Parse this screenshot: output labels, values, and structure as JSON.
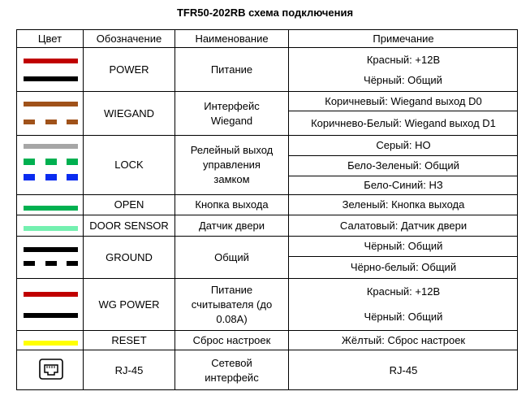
{
  "title": "TFR50-202RB схема подключения",
  "headers": {
    "color": "Цвет",
    "designation": "Обозначение",
    "name": "Наименование",
    "note": "Примечание"
  },
  "rows": [
    {
      "designation": "POWER",
      "name": "Питание",
      "notes": [
        "Красный: +12В",
        "Чёрный: Общий"
      ]
    },
    {
      "designation": "WIEGAND",
      "name": "Интерфейс Wiegand",
      "notes": [
        "Коричневый: Wiegand выход D0",
        "Коричнево-Белый: Wiegand выход D1"
      ]
    },
    {
      "designation": "LOCK",
      "name": "Релейный выход управления замком",
      "notes": [
        "Серый: НО",
        "Бело-Зеленый: Общий",
        "Бело-Синий: НЗ"
      ]
    },
    {
      "designation": "OPEN",
      "name": "Кнопка выхода",
      "notes": [
        "Зеленый: Кнопка выхода"
      ]
    },
    {
      "designation": "DOOR SENSOR",
      "name": "Датчик двери",
      "notes": [
        "Салатовый: Датчик двери"
      ]
    },
    {
      "designation": "GROUND",
      "name": "Общий",
      "notes": [
        "Чёрный: Общий",
        "Чёрно-белый: Общий"
      ]
    },
    {
      "designation": "WG POWER",
      "name": "Питание считывателя (до 0.08А)",
      "notes": [
        "Красный: +12В",
        "Чёрный: Общий"
      ]
    },
    {
      "designation": "RESET",
      "name": "Сброс настроек",
      "notes": [
        "Жёлтый: Сброс настроек"
      ]
    },
    {
      "designation": "RJ-45",
      "name": "Сетевой интерфейс",
      "notes": [
        "RJ-45"
      ]
    }
  ],
  "wire_colors": {
    "red": "#c00000",
    "black": "#000000",
    "brown": "#a0521a",
    "gray": "#a6a6a6",
    "green": "#00b050",
    "blue": "#0a2cf0",
    "light_green": "#74f0b0",
    "yellow": "#ffff00"
  },
  "rj45_icon": "ethernet-port-icon"
}
